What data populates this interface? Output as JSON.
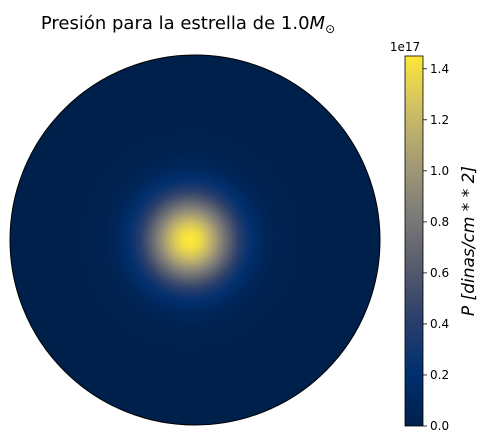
{
  "chart_data": {
    "type": "heatmap",
    "title_prefix": "Presión para la estrella de 1.0",
    "title_symbol": "M",
    "title_subscript": "⊙",
    "field": "radial pressure profile",
    "peak_pressure": 1.45e+17,
    "edge_pressure": 0.0,
    "colormap": "cividis",
    "colorbar": {
      "label": "P [dinas/cm * * 2]",
      "offset_text": "1e17",
      "ticks": [
        0.0,
        0.2,
        0.4,
        0.6,
        0.8,
        1.0,
        1.2,
        1.4
      ],
      "tick_labels": [
        "0.0",
        "0.2",
        "0.4",
        "0.6",
        "0.8",
        "1.0",
        "1.2",
        "1.4"
      ],
      "range": [
        0.0,
        1.45
      ]
    },
    "colormap_stops": [
      "#00204c",
      "#00306f",
      "#2a3f6c",
      "#575c6d",
      "#7c7b78",
      "#a59c74",
      "#cfbf65",
      "#fde737"
    ],
    "background_color": "#00204c"
  }
}
